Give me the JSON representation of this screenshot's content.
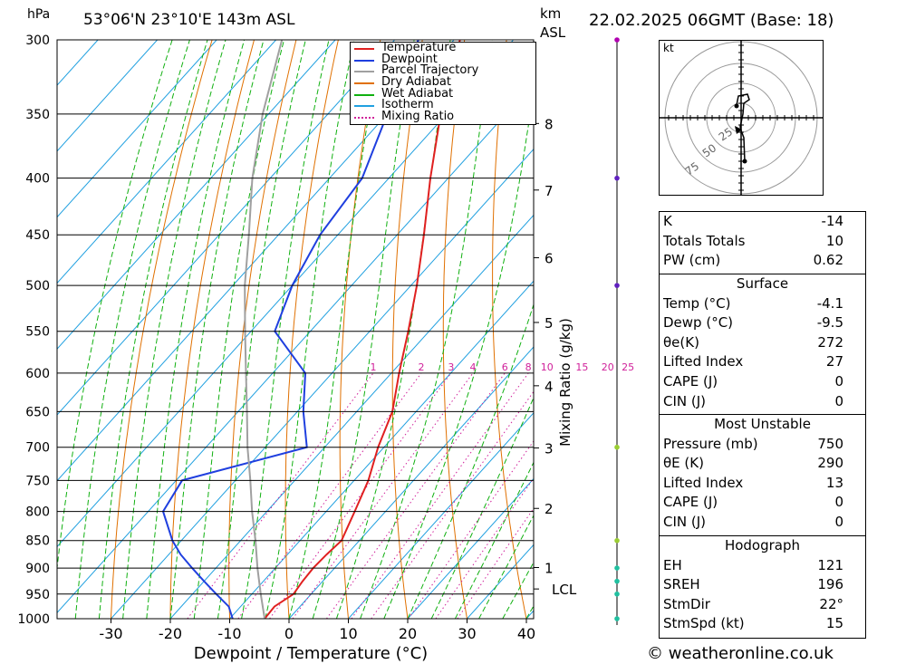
{
  "header": {
    "pressure_unit": "hPa",
    "location": "53°06'N  23°10'E  143m  ASL",
    "km_label": "km",
    "asl_label": "ASL",
    "datetime": "22.02.2025 06GMT (Base: 18)"
  },
  "legend": {
    "items": [
      {
        "label": "Temperature",
        "color": "#e02020",
        "style": "solid"
      },
      {
        "label": "Dewpoint",
        "color": "#1f3fdf",
        "style": "solid"
      },
      {
        "label": "Parcel Trajectory",
        "color": "#a0a0a0",
        "style": "solid"
      },
      {
        "label": "Dry Adiabat",
        "color": "#e07000",
        "style": "solid"
      },
      {
        "label": "Wet Adiabat",
        "color": "#10b010",
        "style": "solid"
      },
      {
        "label": "Isotherm",
        "color": "#20a0e0",
        "style": "solid"
      },
      {
        "label": "Mixing Ratio",
        "color": "#d0209a",
        "style": "dotted"
      }
    ]
  },
  "chart_data": {
    "type": "line",
    "xlabel": "Dewpoint / Temperature (°C)",
    "ylabel": "hPa",
    "y2label": "Mixing Ratio (g/kg)",
    "xlim": [
      -40,
      40
    ],
    "ylim": [
      1000,
      300
    ],
    "x_ticks": [
      -30,
      -20,
      -10,
      0,
      10,
      20,
      30,
      40
    ],
    "pressure_levels": [
      300,
      350,
      400,
      450,
      500,
      550,
      600,
      650,
      700,
      750,
      800,
      850,
      900,
      950,
      1000
    ],
    "km_ticks": [
      {
        "label": "8",
        "p": 357
      },
      {
        "label": "7",
        "p": 410
      },
      {
        "label": "6",
        "p": 472
      },
      {
        "label": "5",
        "p": 540
      },
      {
        "label": "4",
        "p": 616
      },
      {
        "label": "3",
        "p": 701
      },
      {
        "label": "2",
        "p": 795
      },
      {
        "label": "1",
        "p": 899
      }
    ],
    "lcl_label": "LCL",
    "lcl_p": 940,
    "mixing_ratio_labels": [
      "1",
      "2",
      "3",
      "4",
      "6",
      "8",
      "10",
      "15",
      "20",
      "25"
    ],
    "mixing_ratio_values": [
      1,
      2,
      3,
      4,
      6,
      8,
      10,
      15,
      20,
      25
    ],
    "series": [
      {
        "name": "Temperature",
        "p": [
          1000,
          975,
          950,
          925,
          900,
          875,
          850,
          800,
          750,
          700,
          650,
          600,
          550,
          500,
          450,
          400,
          350,
          300
        ],
        "t": [
          -4.1,
          -4.3,
          -3.0,
          -3.4,
          -3.6,
          -3.4,
          -3.0,
          -5.2,
          -7.6,
          -11.0,
          -14.0,
          -18.7,
          -23.5,
          -29.0,
          -35.5,
          -43.0,
          -51.0,
          -59.0
        ]
      },
      {
        "name": "Dewpoint",
        "p": [
          1000,
          975,
          950,
          925,
          900,
          875,
          850,
          800,
          750,
          700,
          650,
          600,
          550,
          500,
          450,
          400,
          350,
          300
        ],
        "t": [
          -9.5,
          -12.0,
          -16.0,
          -20.0,
          -24.0,
          -28.0,
          -31.5,
          -37.5,
          -39.0,
          -23.0,
          -29.0,
          -34.5,
          -46.0,
          -50.0,
          -53.0,
          -54.5,
          -60.0,
          -66.0
        ]
      },
      {
        "name": "Parcel Trajectory",
        "p": [
          1000,
          950,
          900,
          850,
          800,
          750,
          700,
          650,
          600,
          550,
          500,
          450,
          400,
          350,
          300
        ],
        "t": [
          -4.1,
          -8.5,
          -13.0,
          -17.5,
          -22.5,
          -27.5,
          -33.0,
          -38.5,
          -44.5,
          -51.0,
          -58.0,
          -65.0,
          -73.0,
          -81.0,
          -89.0
        ]
      }
    ],
    "wind_levels_hpa": [
      300,
      400,
      500,
      700,
      850,
      900,
      925,
      950,
      1000
    ]
  },
  "hodograph": {
    "unit_label": "kt",
    "ring_labels": [
      "25",
      "50",
      "75"
    ]
  },
  "indices": {
    "rows": [
      {
        "label": "K",
        "value": "-14"
      },
      {
        "label": "Totals Totals",
        "value": "10"
      },
      {
        "label": "PW (cm)",
        "value": "0.62"
      }
    ]
  },
  "surface": {
    "title": "Surface",
    "rows": [
      {
        "label": "Temp (°C)",
        "value": "-4.1"
      },
      {
        "label": "Dewp (°C)",
        "value": "-9.5"
      },
      {
        "label": "θe(K)",
        "value": "272"
      },
      {
        "label": "Lifted Index",
        "value": "27"
      },
      {
        "label": "CAPE (J)",
        "value": "0"
      },
      {
        "label": "CIN (J)",
        "value": "0"
      }
    ]
  },
  "most_unstable": {
    "title": "Most Unstable",
    "rows": [
      {
        "label": "Pressure (mb)",
        "value": "750"
      },
      {
        "label": "θE (K)",
        "value": "290"
      },
      {
        "label": "Lifted Index",
        "value": "13"
      },
      {
        "label": "CAPE (J)",
        "value": "0"
      },
      {
        "label": "CIN (J)",
        "value": "0"
      }
    ]
  },
  "hodograph_params": {
    "title": "Hodograph",
    "rows": [
      {
        "label": "EH",
        "value": "121"
      },
      {
        "label": "SREH",
        "value": "196"
      },
      {
        "label": "StmDir",
        "value": "22°"
      },
      {
        "label": "StmSpd (kt)",
        "value": "15"
      }
    ]
  },
  "footer": {
    "copyright": "© weatheronline.co.uk"
  }
}
